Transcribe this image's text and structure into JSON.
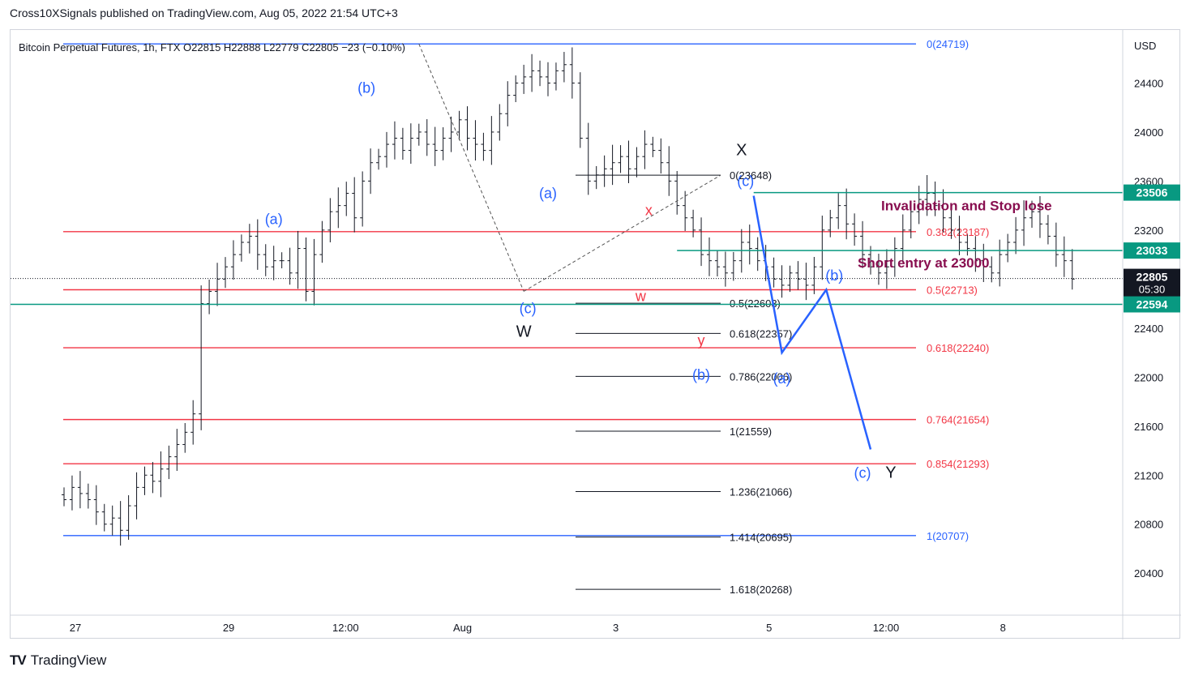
{
  "header": {
    "publisher": "Cross10XSignals published on TradingView.com, Aug 05, 2022 21:54 UTC+3"
  },
  "footer": {
    "brand": "TradingView",
    "logo": "TV-logo-icon"
  },
  "chart_data": {
    "type": "candlestick",
    "symbol_line": "Bitcoin Perpetual Futures, 1h, FTX  O22815  H22888  L22779  C22805  −23 (−0.10%)",
    "currency": "USD",
    "y_ticks": [
      20400,
      20800,
      21200,
      21600,
      22000,
      22400,
      22800,
      23200,
      23600,
      24000,
      24400
    ],
    "ylim": [
      20150,
      24780
    ],
    "x_ticks": [
      {
        "label": "27",
        "i": 0
      },
      {
        "label": "29",
        "i": 19
      },
      {
        "label": "12:00",
        "i": 33.5
      },
      {
        "label": "Aug",
        "i": 48
      },
      {
        "label": "3",
        "i": 67
      },
      {
        "label": "5",
        "i": 86
      },
      {
        "label": "12:00",
        "i": 100.5
      },
      {
        "label": "8",
        "i": 115
      }
    ],
    "price_closes": [
      21000,
      21100,
      21050,
      21000,
      20900,
      20800,
      20850,
      20750,
      20950,
      21100,
      21200,
      21150,
      21250,
      21350,
      21450,
      21550,
      21700,
      22600,
      22700,
      22800,
      22900,
      23000,
      23100,
      23150,
      23000,
      22900,
      22950,
      22950,
      22850,
      23050,
      22700,
      23000,
      23200,
      23350,
      23400,
      23500,
      23300,
      23600,
      23750,
      23800,
      23900,
      23950,
      23850,
      23950,
      24000,
      23900,
      23850,
      23950,
      24000,
      24100,
      23950,
      23900,
      23850,
      24000,
      24150,
      24300,
      24400,
      24450,
      24500,
      24450,
      24400,
      24500,
      24550,
      24400,
      23950,
      23600,
      23650,
      23700,
      23750,
      23800,
      23700,
      23800,
      23900,
      23850,
      23750,
      23600,
      23400,
      23300,
      23200,
      23000,
      22950,
      22900,
      22850,
      22950,
      23100,
      23050,
      22950,
      22900,
      22800,
      22750,
      22850,
      22800,
      22750,
      22900,
      23200,
      23300,
      23400,
      23250,
      23150,
      23000,
      22900,
      22850,
      22900,
      23050,
      23200,
      23350,
      23450,
      23500,
      23400,
      23300,
      23200,
      23100,
      23050,
      22950,
      22900,
      22850,
      23000,
      23100,
      23200,
      23300,
      23350,
      23250,
      23150,
      23000,
      22950,
      22800
    ],
    "reference_lines": [
      {
        "label": "0(24719)",
        "value": 24719,
        "color": "#2962ff"
      },
      {
        "label": "1(20707)",
        "value": 20707,
        "color": "#2962ff"
      },
      {
        "label": "0.382(23187)",
        "value": 23187,
        "color": "#f23645"
      },
      {
        "label": "0.5(22713)",
        "value": 22713,
        "color": "#f23645"
      },
      {
        "label": "0.618(22240)",
        "value": 22240,
        "color": "#f23645"
      },
      {
        "label": "0.764(21654)",
        "value": 21654,
        "color": "#f23645"
      },
      {
        "label": "0.854(21293)",
        "value": 21293,
        "color": "#f23645"
      }
    ],
    "fib_extension_levels": [
      {
        "label": "0(23648)",
        "value": 23648
      },
      {
        "label": "0.5(22603)",
        "value": 22603
      },
      {
        "label": "0.618(22357)",
        "value": 22357
      },
      {
        "label": "0.786(22006)",
        "value": 22006
      },
      {
        "label": "1(21559)",
        "value": 21559
      },
      {
        "label": "1.236(21066)",
        "value": 21066
      },
      {
        "label": "1.414(20695)",
        "value": 20695
      },
      {
        "label": "1.618(20268)",
        "value": 20268
      }
    ],
    "price_tags": [
      {
        "label": "23506",
        "value": 23506,
        "color": "#089981"
      },
      {
        "label": "23033",
        "value": 23033,
        "color": "#089981"
      },
      {
        "label": "22594",
        "value": 22594,
        "color": "#089981"
      },
      {
        "label": "22805",
        "sub": "05:30",
        "value": 22805,
        "color": "#131722"
      }
    ],
    "annotations": [
      {
        "text": "Invalidation and Stop lose",
        "color": "#880e4f"
      },
      {
        "text": "Short entry at 23000",
        "color": "#880e4f"
      }
    ],
    "wave_labels": [
      {
        "text": "(a)",
        "color": "#2962ff",
        "i": 26,
        "v": 23250
      },
      {
        "text": "(b)",
        "color": "#2962ff",
        "i": 37.5,
        "v": 24320
      },
      {
        "text": "(a)",
        "color": "#2962ff",
        "i": 60,
        "v": 23460
      },
      {
        "text": "(c)",
        "color": "#2962ff",
        "i": 57.5,
        "v": 22520
      },
      {
        "text": "W",
        "color": "#131722",
        "i": 57,
        "v": 22330
      },
      {
        "text": "x",
        "color": "#f23645",
        "i": 72.5,
        "v": 23320
      },
      {
        "text": "w",
        "color": "#f23645",
        "i": 71.5,
        "v": 22620
      },
      {
        "text": "y",
        "color": "#f23645",
        "i": 79,
        "v": 22260
      },
      {
        "text": "(b)",
        "color": "#2962ff",
        "i": 79,
        "v": 21980
      },
      {
        "text": "X",
        "color": "#131722",
        "i": 84,
        "v": 23810
      },
      {
        "text": "(c)",
        "color": "#2962ff",
        "i": 84.5,
        "v": 23560
      },
      {
        "text": "(b)",
        "color": "#2962ff",
        "i": 95.5,
        "v": 22790
      },
      {
        "text": "(a)",
        "color": "#2962ff",
        "i": 89,
        "v": 21950
      },
      {
        "text": "(c)",
        "color": "#2962ff",
        "i": 99,
        "v": 21180
      },
      {
        "text": "Y",
        "color": "#131722",
        "i": 102.5,
        "v": 21180
      }
    ],
    "projection_path": [
      {
        "i": 85.5,
        "v": 23480
      },
      {
        "i": 89,
        "v": 22200
      },
      {
        "i": 94.5,
        "v": 22713
      },
      {
        "i": 100,
        "v": 21410
      }
    ],
    "grid": false
  }
}
